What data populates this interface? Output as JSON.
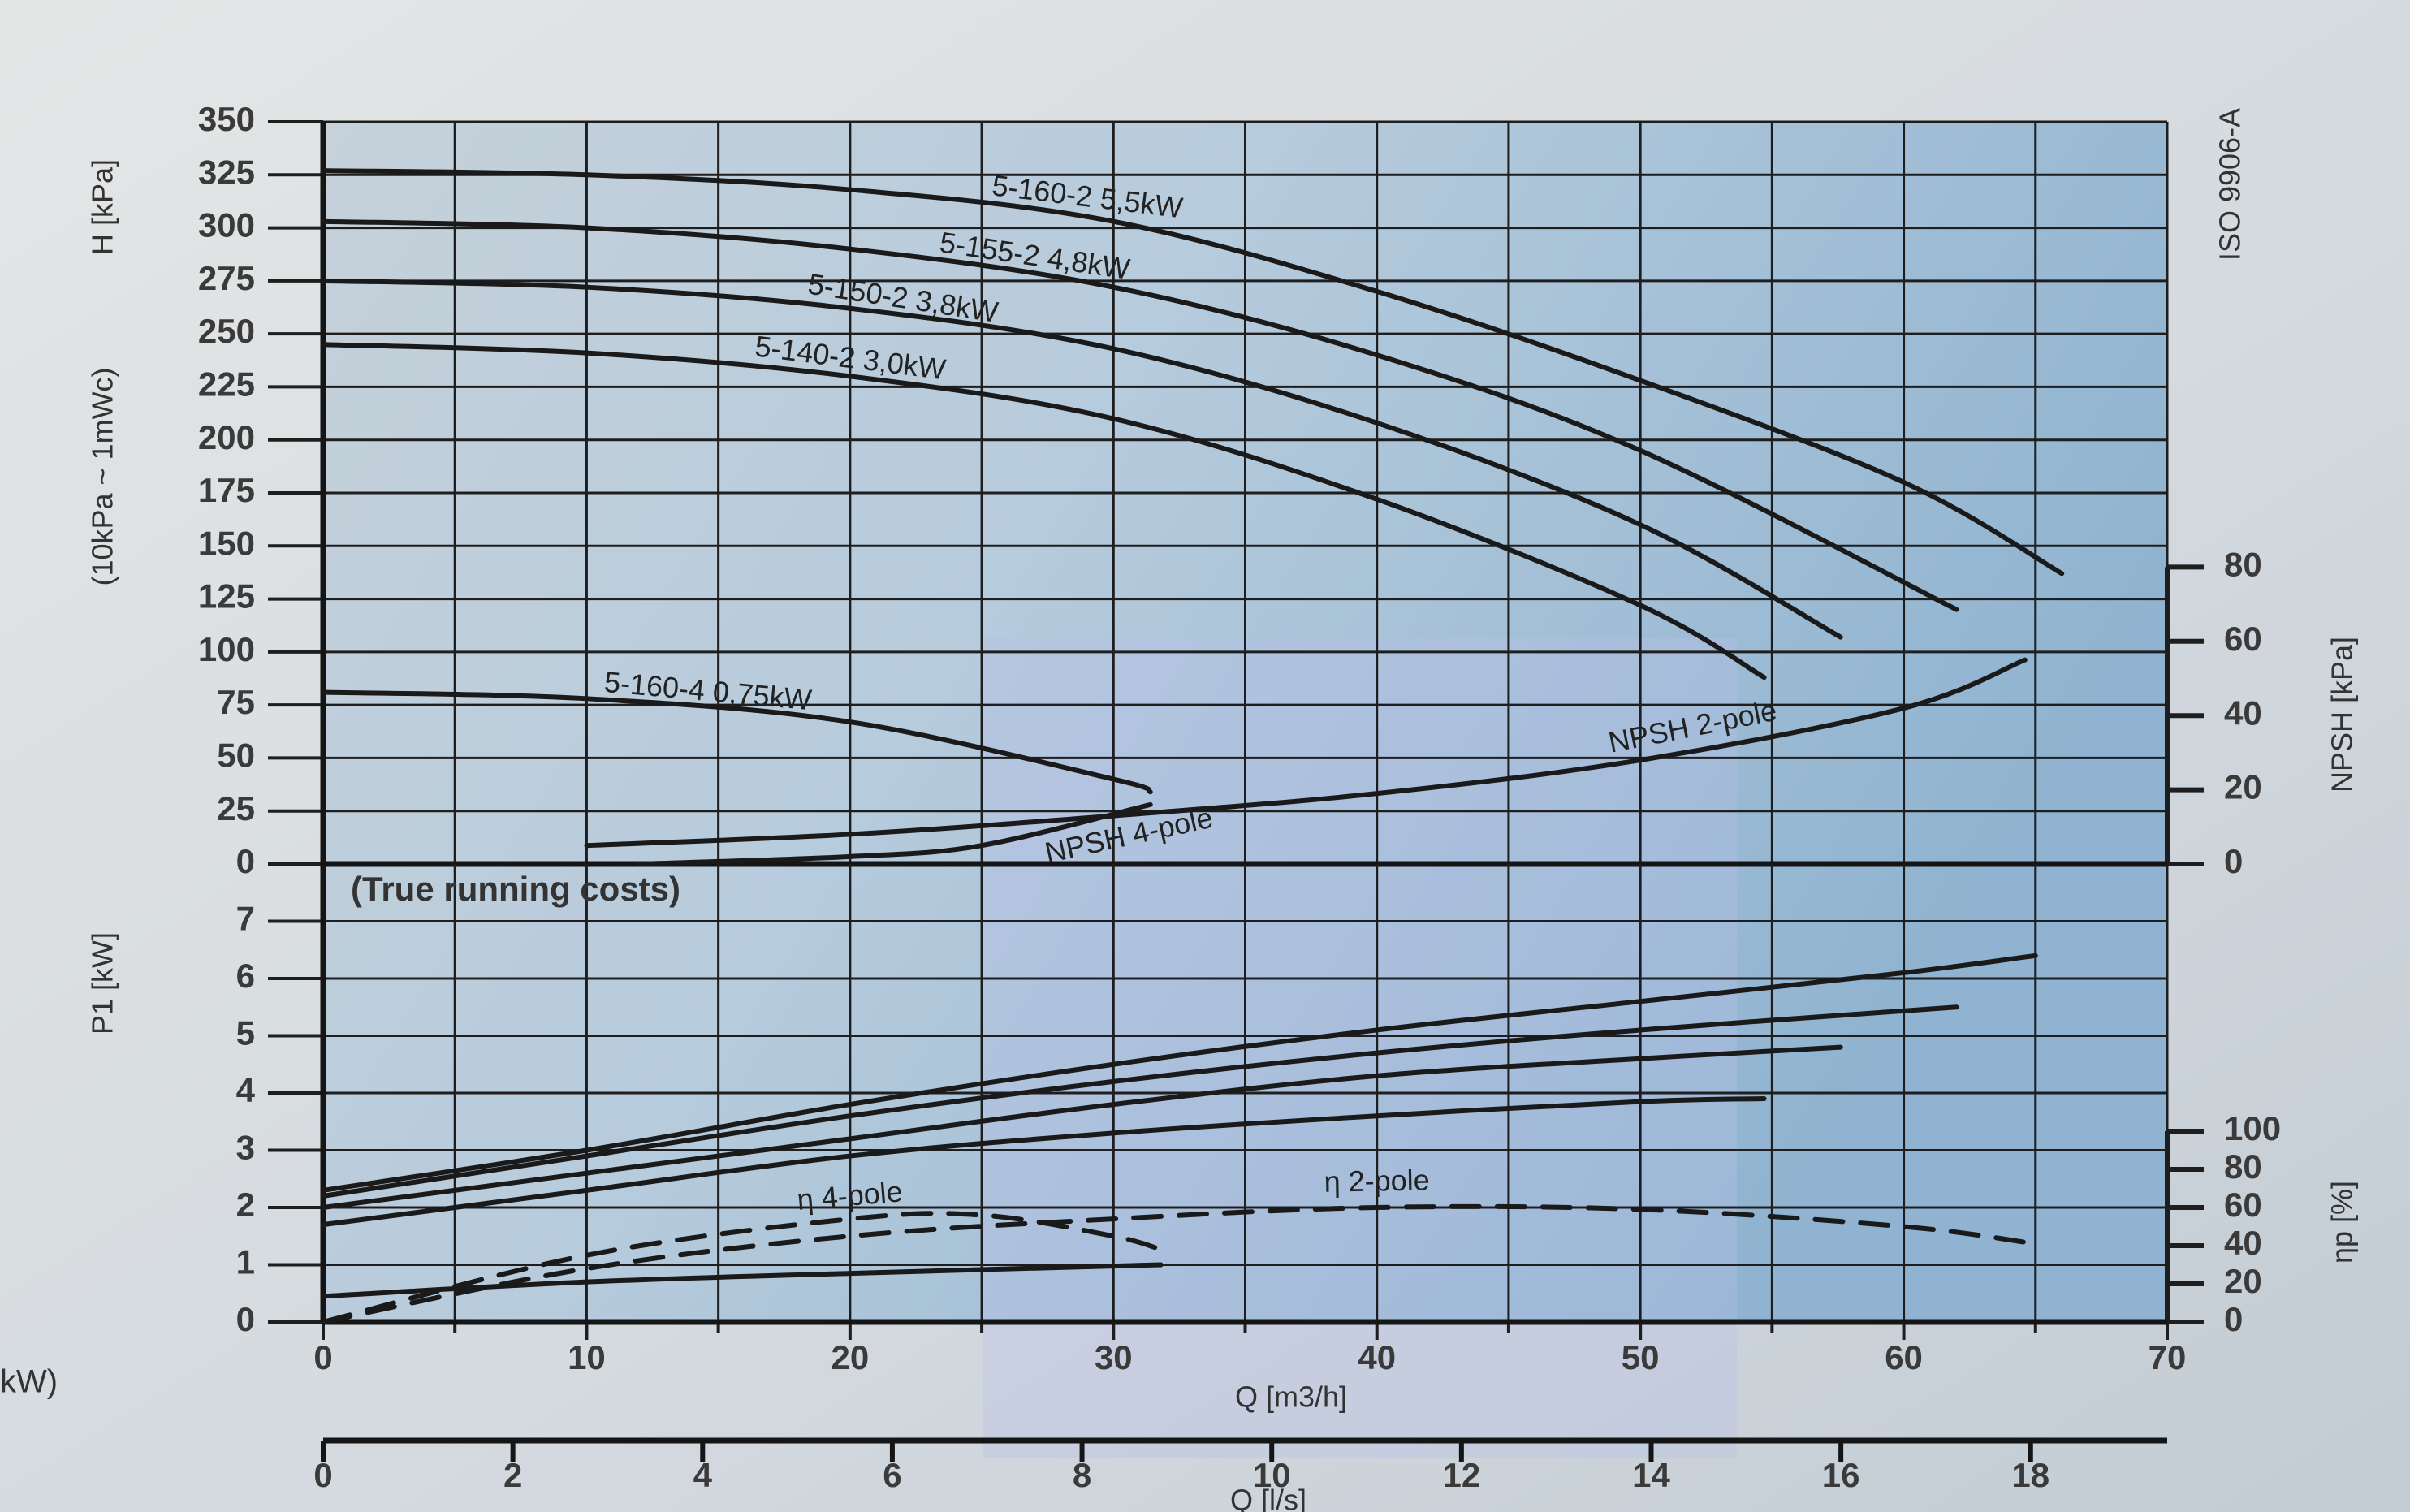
{
  "page_fragment": "kW)",
  "chart_data": [
    {
      "type": "line",
      "annotation": "ISO 9906-A",
      "ylabel": "H [kPa]",
      "ylabel_note": "(10kPa ~ 1mWc)",
      "y2label": "NPSH [kPa]",
      "xlim": [
        0,
        70
      ],
      "xticks": [
        0,
        10,
        20,
        30,
        40,
        50,
        60,
        70
      ],
      "xminorticks": [
        5,
        15,
        25,
        35,
        45,
        55,
        65
      ],
      "ylim": [
        0,
        350
      ],
      "yticks": [
        0,
        25,
        50,
        75,
        100,
        125,
        150,
        175,
        200,
        225,
        250,
        275,
        300,
        325,
        350
      ],
      "y2lim": [
        0,
        200
      ],
      "y2ticks": [
        0,
        20,
        40,
        60,
        80
      ],
      "grid": true,
      "color": "#1a1a1a",
      "series": [
        {
          "name": "5-160-2 5,5kW",
          "x": [
            0,
            10,
            20,
            30,
            40,
            50,
            60,
            66
          ],
          "values": [
            327,
            325,
            318,
            303,
            270,
            228,
            180,
            137
          ]
        },
        {
          "name": "5-155-2 4,8kW",
          "x": [
            0,
            10,
            20,
            30,
            40,
            50,
            62
          ],
          "values": [
            303,
            300,
            290,
            272,
            240,
            195,
            120
          ]
        },
        {
          "name": "5-150-2 3,8kW",
          "x": [
            0,
            10,
            20,
            30,
            40,
            50,
            57.6
          ],
          "values": [
            275,
            272,
            262,
            243,
            208,
            160,
            107
          ]
        },
        {
          "name": "5-140-2 3,0kW",
          "x": [
            0,
            10,
            20,
            30,
            40,
            50,
            54.7
          ],
          "values": [
            245,
            241,
            230,
            210,
            172,
            122,
            88
          ]
        },
        {
          "name": "5-160-4 0,75kW",
          "x": [
            0,
            10,
            20,
            30,
            31.4
          ],
          "values": [
            81,
            78,
            67,
            40,
            34
          ]
        },
        {
          "name": "NPSH 2-pole",
          "axis": "y2",
          "x": [
            10,
            20,
            30,
            40,
            50,
            60,
            64.6
          ],
          "values": [
            5,
            8,
            13,
            19,
            28,
            42,
            55
          ]
        },
        {
          "name": "NPSH 4-pole",
          "axis": "y2",
          "x": [
            12,
            20,
            25,
            31.4
          ],
          "values": [
            0,
            2,
            5,
            16
          ]
        }
      ]
    },
    {
      "type": "line",
      "annotation": "(True running costs)",
      "ylabel": "P1 [kW]",
      "y2label": "ηp [%]",
      "xlabel": "Q [m3/h]",
      "x2label": "Q [l/s]",
      "xlim": [
        0,
        70
      ],
      "xticks": [
        0,
        10,
        20,
        30,
        40,
        50,
        60,
        70
      ],
      "xminorticks": [
        5,
        15,
        25,
        35,
        45,
        55,
        65
      ],
      "x2lim": [
        0,
        19.44
      ],
      "x2ticks": [
        0,
        2,
        4,
        6,
        8,
        10,
        12,
        14,
        16,
        18
      ],
      "ylim": [
        0,
        8
      ],
      "yticks": [
        0,
        1,
        2,
        3,
        4,
        5,
        6,
        7
      ],
      "y2lim": [
        0,
        240
      ],
      "y2ticks": [
        0,
        20,
        40,
        60,
        80,
        100
      ],
      "grid": true,
      "color": "#1a1a1a",
      "series": [
        {
          "x": [
            0,
            10,
            20,
            30,
            40,
            50,
            60,
            65
          ],
          "values": [
            2.3,
            3.0,
            3.8,
            4.5,
            5.1,
            5.6,
            6.1,
            6.4
          ]
        },
        {
          "x": [
            0,
            10,
            20,
            30,
            40,
            50,
            62
          ],
          "values": [
            2.2,
            2.9,
            3.6,
            4.2,
            4.7,
            5.1,
            5.5
          ]
        },
        {
          "x": [
            0,
            10,
            20,
            30,
            40,
            50,
            57.6
          ],
          "values": [
            2.0,
            2.6,
            3.2,
            3.8,
            4.3,
            4.6,
            4.8
          ]
        },
        {
          "x": [
            0,
            10,
            20,
            30,
            40,
            50,
            54.7
          ],
          "values": [
            1.7,
            2.3,
            2.9,
            3.3,
            3.6,
            3.85,
            3.9
          ]
        },
        {
          "x": [
            0,
            10,
            20,
            31.8
          ],
          "values": [
            0.45,
            0.7,
            0.85,
            1.0
          ]
        },
        {
          "name": "η 4-pole",
          "axis": "y2",
          "dash": true,
          "x": [
            0,
            10,
            20,
            25,
            30,
            32
          ],
          "values": [
            0,
            35,
            54,
            56,
            45,
            37
          ]
        },
        {
          "name": "η 2-pole",
          "axis": "y2",
          "dash": true,
          "x": [
            0,
            10,
            20,
            30,
            40,
            50,
            60,
            65
          ],
          "values": [
            0,
            28,
            45,
            54,
            60,
            59,
            50,
            41
          ]
        }
      ]
    }
  ]
}
